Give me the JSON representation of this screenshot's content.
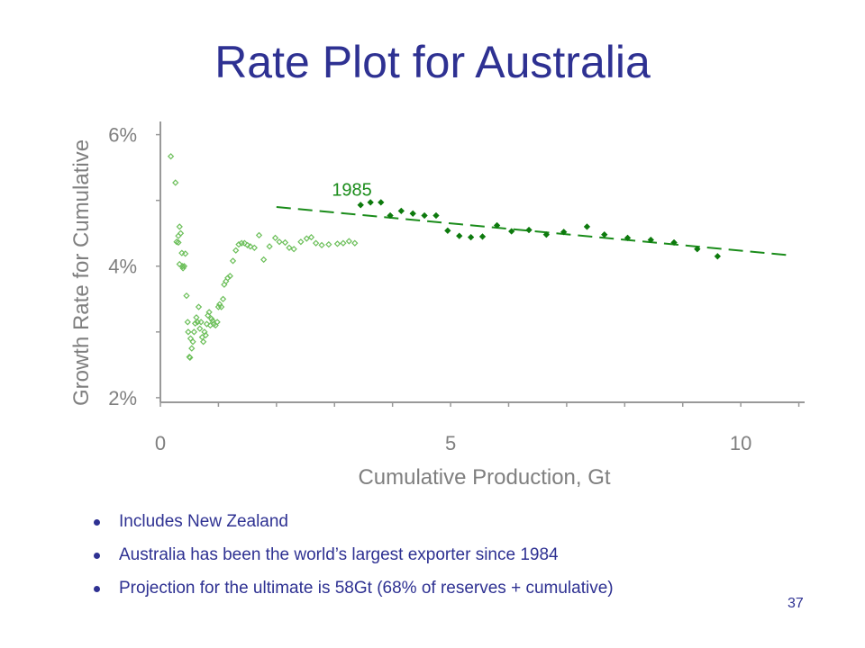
{
  "slide": {
    "title": "Rate Plot for Australia",
    "bullets": [
      "Includes New Zealand",
      "Australia has been the world’s largest exporter since 1984",
      "Projection for the ultimate is 58Gt (68% of reserves + cumulative)"
    ],
    "page_number": "37"
  },
  "chart_data": {
    "type": "scatter",
    "title": "",
    "xlabel": "Cumulative Production, Gt",
    "ylabel": "Growth Rate for Cumulative",
    "xlim": [
      0,
      11.1
    ],
    "ylim": [
      1.93,
      6.2
    ],
    "x_ticks": [
      0,
      5,
      10
    ],
    "x_tick_labels": [
      "0",
      "5",
      "10"
    ],
    "y_ticks": [
      2,
      4,
      6
    ],
    "y_tick_labels": [
      "2%",
      "4%",
      "6%"
    ],
    "grid": false,
    "legend": "none",
    "annotations": [
      {
        "text": "1985",
        "x": 3.3,
        "y": 5.07
      }
    ],
    "colors": {
      "early": "#6cbf5a",
      "late": "#0d7a0d",
      "trend": "#1a8c1a",
      "axis": "#999999"
    },
    "series": [
      {
        "marker": "open-diamond",
        "x": [
          0.18,
          0.26,
          0.28,
          0.31,
          0.31,
          0.33,
          0.33,
          0.35,
          0.37,
          0.38,
          0.39,
          0.41,
          0.43,
          0.45,
          0.47,
          0.48,
          0.5,
          0.51,
          0.52,
          0.54,
          0.56,
          0.58,
          0.6,
          0.62,
          0.64,
          0.66,
          0.68,
          0.7,
          0.72,
          0.74,
          0.76,
          0.78,
          0.8,
          0.82,
          0.84,
          0.86,
          0.88,
          0.9,
          0.92,
          0.95,
          0.98,
          1.0,
          1.02,
          1.05,
          1.08,
          1.1,
          1.13,
          1.16,
          1.2,
          1.25,
          1.3,
          1.35,
          1.4,
          1.45,
          1.5,
          1.55,
          1.62,
          1.7,
          1.78,
          1.88,
          1.98,
          2.05,
          2.15,
          2.22,
          2.3,
          2.42,
          2.52,
          2.6,
          2.68,
          2.78,
          2.9,
          3.05,
          3.15,
          3.25,
          3.35
        ],
        "y": [
          5.67,
          5.27,
          4.37,
          4.46,
          4.36,
          4.6,
          4.03,
          4.5,
          4.2,
          4.0,
          3.97,
          4.0,
          4.19,
          3.55,
          3.15,
          3.0,
          2.62,
          2.61,
          2.9,
          2.75,
          2.85,
          3.0,
          3.13,
          3.22,
          3.15,
          3.38,
          3.05,
          3.15,
          2.92,
          2.85,
          3.0,
          2.95,
          3.12,
          3.25,
          3.3,
          3.1,
          3.2,
          3.17,
          3.12,
          3.1,
          3.15,
          3.38,
          3.42,
          3.38,
          3.5,
          3.72,
          3.77,
          3.82,
          3.85,
          4.08,
          4.24,
          4.33,
          4.35,
          4.35,
          4.32,
          4.3,
          4.28,
          4.47,
          4.1,
          4.3,
          4.43,
          4.37,
          4.36,
          4.28,
          4.26,
          4.37,
          4.42,
          4.44,
          4.35,
          4.32,
          4.33,
          4.34,
          4.35,
          4.38,
          4.35
        ]
      },
      {
        "marker": "filled-diamond",
        "x": [
          3.45,
          3.62,
          3.8,
          3.96,
          4.15,
          4.35,
          4.55,
          4.75,
          4.95,
          5.15,
          5.35,
          5.55,
          5.8,
          6.05,
          6.35,
          6.65,
          6.95,
          7.35,
          7.65,
          8.05,
          8.45,
          8.85,
          9.25,
          9.6
        ],
        "y": [
          4.93,
          4.97,
          4.97,
          4.77,
          4.84,
          4.8,
          4.77,
          4.77,
          4.54,
          4.46,
          4.44,
          4.45,
          4.62,
          4.53,
          4.55,
          4.48,
          4.52,
          4.6,
          4.48,
          4.43,
          4.4,
          4.36,
          4.26,
          4.15
        ]
      },
      {
        "type": "line",
        "style": "dashed",
        "x": [
          2.0,
          10.8
        ],
        "y": [
          4.9,
          4.17
        ]
      }
    ]
  }
}
